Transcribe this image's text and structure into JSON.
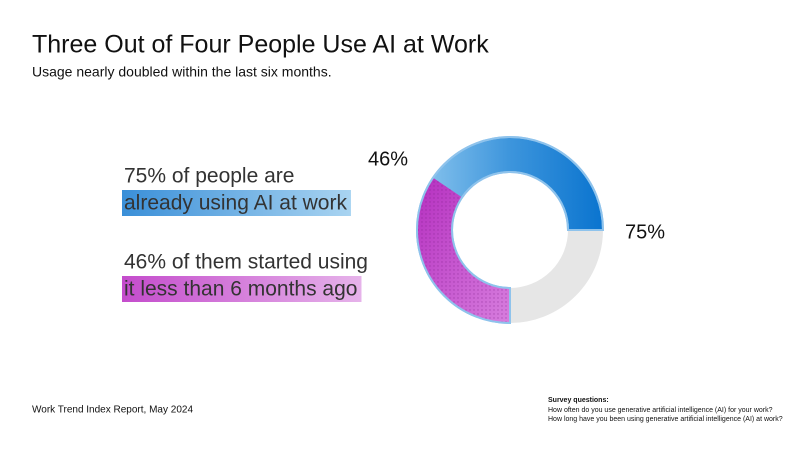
{
  "chart_data": {
    "type": "donut",
    "title": "Three Out of Four People Use AI at Work",
    "subtitle": "Usage nearly doubled within the last six months.",
    "values": [
      75,
      46
    ],
    "value_labels": [
      "75%",
      "46%"
    ],
    "colors": [
      "#1f80d4",
      "#c03bc4"
    ],
    "track_color": "#e6e6e6",
    "callouts": [
      {
        "lines": [
          "75% of people are",
          "already using AI at work"
        ]
      },
      {
        "lines": [
          "46% of them started using",
          "it less than 6 months ago"
        ]
      }
    ],
    "source": "Work Trend Index Report, May 2024",
    "notes_heading": "Survey questions:",
    "notes": [
      "How often do you use generative artificial intelligence (AI) for your work?",
      "How long have you been using generative artificial intelligence (AI) at work?"
    ]
  }
}
